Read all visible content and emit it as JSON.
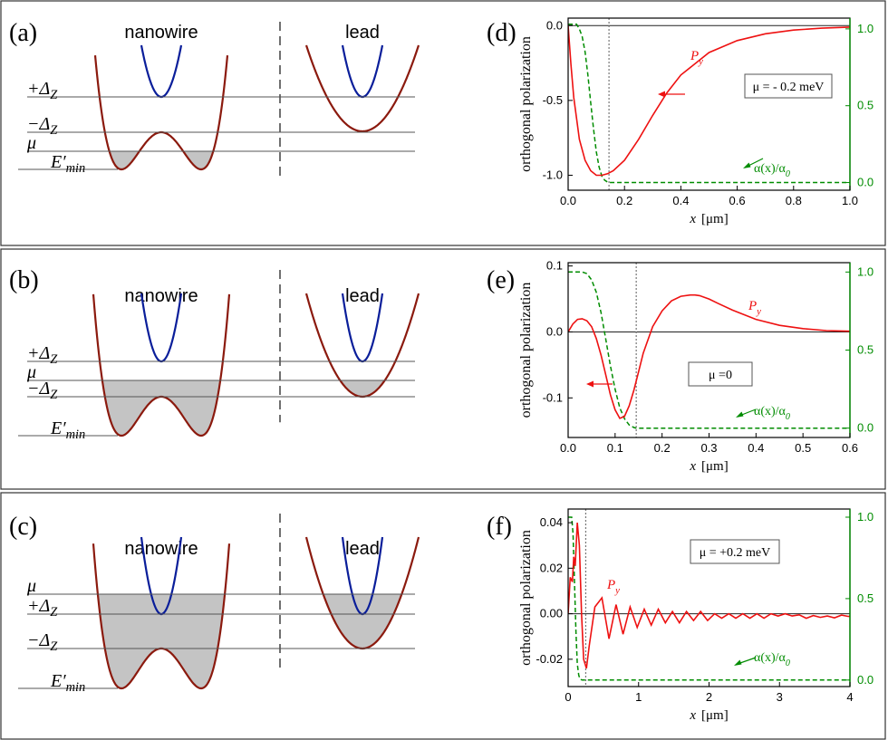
{
  "figure": {
    "rows": [
      {
        "left_label": "(a)",
        "right_label": "(d)",
        "nanowire_label": "nanowire",
        "lead_label": "lead",
        "levels": [
          {
            "name": "+Δ_Z",
            "base": "+Δ",
            "sub": "Z"
          },
          {
            "name": "−Δ_Z",
            "base": "−Δ",
            "sub": "Z"
          },
          {
            "name": "μ",
            "base": "μ",
            "sub": ""
          },
          {
            "name": "E'_min",
            "base": "E′",
            "sub": "min"
          }
        ]
      },
      {
        "left_label": "(b)",
        "right_label": "(e)",
        "nanowire_label": "nanowire",
        "lead_label": "lead",
        "levels": [
          {
            "name": "+Δ_Z",
            "base": "+Δ",
            "sub": "Z"
          },
          {
            "name": "μ",
            "base": "μ",
            "sub": ""
          },
          {
            "name": "−Δ_Z",
            "base": "−Δ",
            "sub": "Z"
          },
          {
            "name": "E'_min",
            "base": "E′",
            "sub": "min"
          }
        ]
      },
      {
        "left_label": "(c)",
        "right_label": "(f)",
        "nanowire_label": "nanowire",
        "lead_label": "lead",
        "levels": [
          {
            "name": "μ",
            "base": "μ",
            "sub": ""
          },
          {
            "name": "+Δ_Z",
            "base": "+Δ",
            "sub": "Z"
          },
          {
            "name": "−Δ_Z",
            "base": "−Δ",
            "sub": "Z"
          },
          {
            "name": "E'_min",
            "base": "E′",
            "sub": "min"
          }
        ]
      }
    ]
  },
  "colors": {
    "parabola_outer": "#8b1a0e",
    "parabola_inner": "#0a1e9a",
    "fill": "#c4c4c4",
    "py": "#ee1111",
    "alpha": "#008c00",
    "frame": "#333333"
  },
  "chart_data": [
    {
      "type": "line",
      "panel": "(d)",
      "xlabel_var": "x",
      "xlabel_unit": "[μm]",
      "ylabel": "orthogonal polarization",
      "xlim": [
        0,
        1.0
      ],
      "ylim": [
        -1.1,
        0.05
      ],
      "yticks": [
        0.0,
        -0.5,
        -1.0
      ],
      "xticks": [
        0.0,
        0.2,
        0.4,
        0.6,
        0.8,
        1.0
      ],
      "y2lim": [
        -0.05,
        1.07
      ],
      "y2ticks": [
        0.0,
        0.5,
        1.0
      ],
      "boundary_x": 0.145,
      "annotation": "μ = - 0.2 meV",
      "py_label": "P",
      "py_sub": "y",
      "alpha_label": "α(x)/α",
      "alpha_sub": "0",
      "series": [
        {
          "name": "P_y",
          "x": [
            0,
            0.01,
            0.02,
            0.04,
            0.06,
            0.08,
            0.1,
            0.12,
            0.14,
            0.16,
            0.2,
            0.25,
            0.3,
            0.35,
            0.4,
            0.5,
            0.6,
            0.7,
            0.8,
            0.9,
            1.0
          ],
          "y": [
            0,
            -0.26,
            -0.48,
            -0.76,
            -0.9,
            -0.97,
            -1.0,
            -1.0,
            -0.99,
            -0.97,
            -0.9,
            -0.76,
            -0.6,
            -0.45,
            -0.33,
            -0.18,
            -0.1,
            -0.055,
            -0.03,
            -0.017,
            -0.01
          ]
        },
        {
          "name": "α(x)/α0",
          "x": [
            0,
            0.03,
            0.04,
            0.05,
            0.06,
            0.07,
            0.08,
            0.09,
            0.1,
            0.11,
            0.12,
            0.13,
            0.14,
            0.145,
            0.2,
            0.4,
            0.6,
            0.8,
            1.0
          ],
          "y": [
            1.03,
            1.03,
            1.0,
            0.95,
            0.85,
            0.7,
            0.52,
            0.35,
            0.2,
            0.1,
            0.04,
            0.015,
            0.003,
            0,
            0,
            0,
            0,
            0,
            0
          ]
        }
      ]
    },
    {
      "type": "line",
      "panel": "(e)",
      "xlabel_var": "x",
      "xlabel_unit": "[μm]",
      "ylabel": "orthogonal polarization",
      "xlim": [
        0,
        0.6
      ],
      "ylim": [
        -0.16,
        0.105
      ],
      "yticks": [
        0.1,
        0.0,
        -0.1
      ],
      "xticks": [
        0.0,
        0.1,
        0.2,
        0.3,
        0.4,
        0.5,
        0.6
      ],
      "y2lim": [
        -0.06,
        1.06
      ],
      "y2ticks": [
        0.0,
        0.5,
        1.0
      ],
      "boundary_x": 0.145,
      "annotation": "μ =0",
      "py_label": "P",
      "py_sub": "y",
      "alpha_label": "α(x)/α",
      "alpha_sub": "0",
      "series": [
        {
          "name": "P_y",
          "x": [
            0,
            0.01,
            0.02,
            0.03,
            0.04,
            0.05,
            0.06,
            0.07,
            0.08,
            0.09,
            0.1,
            0.11,
            0.12,
            0.13,
            0.14,
            0.15,
            0.16,
            0.18,
            0.2,
            0.22,
            0.24,
            0.26,
            0.27,
            0.28,
            0.3,
            0.32,
            0.35,
            0.4,
            0.45,
            0.5,
            0.55,
            0.6
          ],
          "y": [
            0,
            0.012,
            0.019,
            0.02,
            0.017,
            0.008,
            -0.01,
            -0.035,
            -0.065,
            -0.095,
            -0.118,
            -0.131,
            -0.128,
            -0.112,
            -0.088,
            -0.06,
            -0.032,
            0.008,
            0.032,
            0.047,
            0.054,
            0.056,
            0.056,
            0.055,
            0.05,
            0.043,
            0.033,
            0.019,
            0.01,
            0.005,
            0.002,
            0.001
          ]
        },
        {
          "name": "α(x)/α0",
          "x": [
            0,
            0.03,
            0.04,
            0.05,
            0.06,
            0.07,
            0.08,
            0.09,
            0.1,
            0.11,
            0.12,
            0.13,
            0.14,
            0.145,
            0.2,
            0.4,
            0.6
          ],
          "y": [
            1.0,
            1.0,
            0.99,
            0.95,
            0.87,
            0.74,
            0.57,
            0.4,
            0.25,
            0.13,
            0.06,
            0.02,
            0.004,
            0,
            0,
            0,
            0
          ]
        }
      ]
    },
    {
      "type": "line",
      "panel": "(f)",
      "xlabel_var": "x",
      "xlabel_unit": "[μm]",
      "ylabel": "orthogonal polarization",
      "xlim": [
        0,
        4
      ],
      "ylim": [
        -0.032,
        0.046
      ],
      "yticks": [
        0.04,
        0.02,
        0.0,
        -0.02
      ],
      "ytick_labels": [
        "0.04",
        "0.02",
        "0.00",
        "-0.02"
      ],
      "xticks": [
        0,
        1,
        2,
        3,
        4
      ],
      "y2lim": [
        -0.04,
        1.05
      ],
      "y2ticks": [
        0.0,
        0.5,
        1.0
      ],
      "boundary_x": 0.25,
      "annotation": "μ = +0.2 meV",
      "py_label": "P",
      "py_sub": "y",
      "alpha_label": "α(x)/α",
      "alpha_sub": "0",
      "series": [
        {
          "name": "P_y",
          "x": [
            0,
            0.03,
            0.06,
            0.08,
            0.1,
            0.13,
            0.16,
            0.19,
            0.22,
            0.26,
            0.3,
            0.38,
            0.48,
            0.58,
            0.68,
            0.78,
            0.88,
            0.98,
            1.08,
            1.18,
            1.28,
            1.38,
            1.48,
            1.58,
            1.68,
            1.78,
            1.88,
            1.98,
            2.08,
            2.18,
            2.28,
            2.38,
            2.48,
            2.58,
            2.68,
            2.78,
            2.88,
            2.98,
            3.08,
            3.18,
            3.28,
            3.38,
            3.48,
            3.58,
            3.68,
            3.78,
            3.88,
            3.98,
            4.0
          ],
          "y": [
            0,
            0.016,
            0.014,
            0.025,
            0.021,
            0.04,
            0.03,
            0.0,
            -0.02,
            -0.024,
            -0.014,
            0.003,
            0.007,
            -0.011,
            0.004,
            -0.009,
            0.003,
            -0.006,
            0.002,
            -0.005,
            0.002,
            -0.004,
            0.001,
            -0.004,
            0.001,
            -0.003,
            0.001,
            -0.003,
            0.0,
            -0.002,
            0.0,
            -0.002,
            0.0,
            -0.002,
            0.0,
            -0.002,
            0.0,
            -0.001,
            0.0,
            -0.001,
            -0.0005,
            -0.002,
            -0.0008,
            -0.0016,
            -0.001,
            -0.0018,
            -0.0006,
            -0.0012,
            -0.001
          ]
        },
        {
          "name": "α(x)/α0",
          "x": [
            0,
            0.05,
            0.07,
            0.09,
            0.11,
            0.13,
            0.15,
            0.17,
            0.2,
            0.25,
            1,
            2,
            3,
            4
          ],
          "y": [
            1.0,
            1.0,
            0.9,
            0.6,
            0.3,
            0.1,
            0.03,
            0.005,
            0,
            0,
            0,
            0,
            0,
            0
          ]
        }
      ]
    }
  ]
}
